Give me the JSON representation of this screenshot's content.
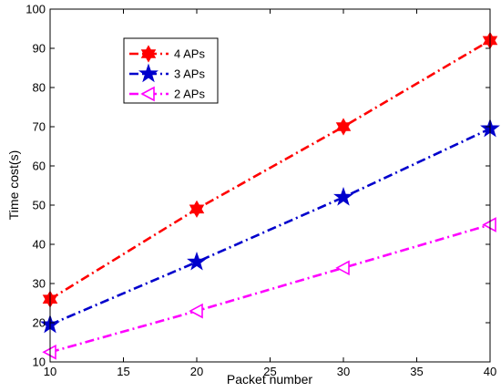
{
  "chart_data": {
    "type": "line",
    "title": "",
    "xlabel": "Packet number",
    "ylabel": "Time cost(s)",
    "xlim": [
      10,
      40
    ],
    "ylim": [
      10,
      100
    ],
    "xticks": [
      10,
      15,
      20,
      25,
      30,
      35,
      40
    ],
    "yticks": [
      10,
      20,
      30,
      40,
      50,
      60,
      70,
      80,
      90,
      100
    ],
    "grid": false,
    "legend_position": "top-left",
    "x": [
      10,
      20,
      30,
      40
    ],
    "series": [
      {
        "name": "4 APs",
        "values": [
          26,
          49,
          70,
          92
        ],
        "color": "#ff0000",
        "marker": "hexagram"
      },
      {
        "name": "3 APs",
        "values": [
          19.5,
          35.5,
          52,
          69.5
        ],
        "color": "#0000cc",
        "marker": "pentagram"
      },
      {
        "name": "2 APs",
        "values": [
          12.5,
          23,
          34,
          45
        ],
        "color": "#ff00ff",
        "marker": "triangle-left"
      }
    ]
  }
}
